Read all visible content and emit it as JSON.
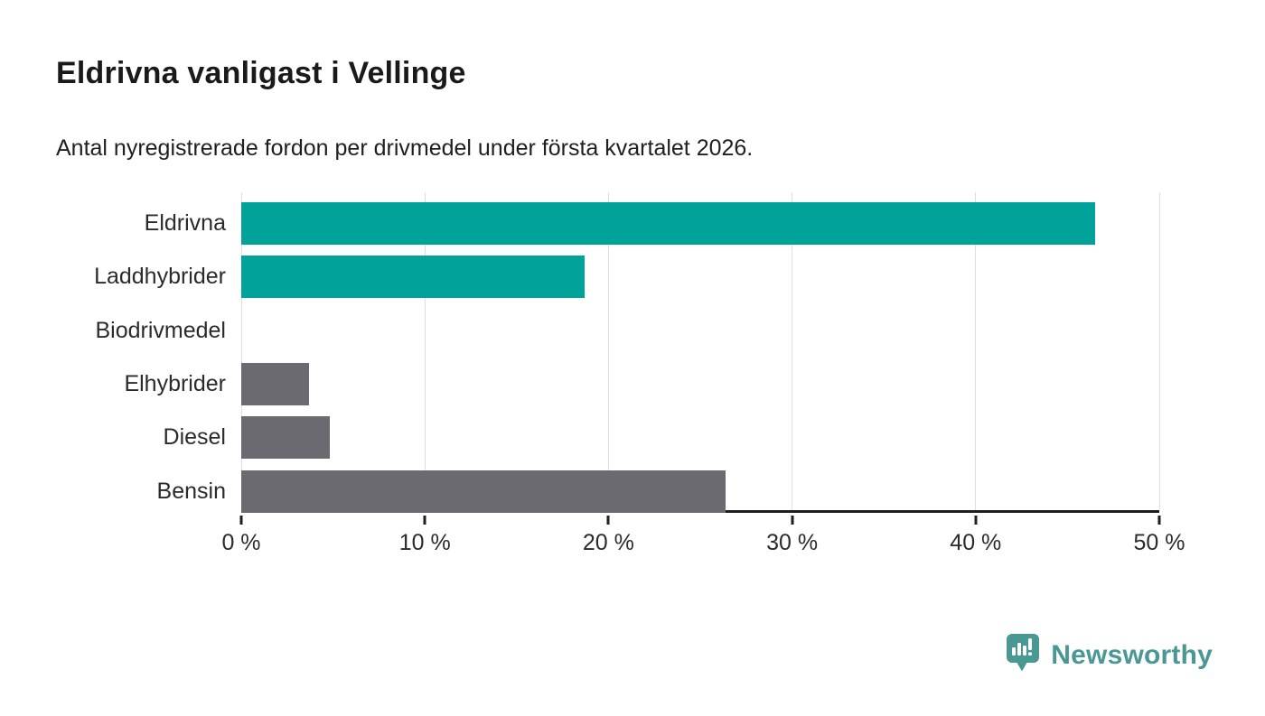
{
  "title": "Eldrivna vanligast i Vellinge",
  "subtitle": "Antal nyregistrerade fordon per drivmedel under första kvartalet 2026.",
  "chart_data": {
    "type": "bar",
    "orientation": "horizontal",
    "title": "Eldrivna vanligast i Vellinge",
    "subtitle": "Antal nyregistrerade fordon per drivmedel under första kvartalet 2026.",
    "categories": [
      "Eldrivna",
      "Laddhybrider",
      "Biodrivmedel",
      "Elhybrider",
      "Diesel",
      "Bensin"
    ],
    "values": [
      46.5,
      18.7,
      0,
      3.7,
      4.8,
      26.4
    ],
    "unit": "%",
    "bar_colors": [
      "#00a29a",
      "#00a29a",
      "#6b6a70",
      "#6b6a70",
      "#6b6a70",
      "#6b6a70"
    ],
    "xlabel": "",
    "ylabel": "",
    "xlim": [
      0,
      50
    ],
    "x_tick_values": [
      0,
      10,
      20,
      30,
      40,
      50
    ],
    "x_tick_labels": [
      "0 %",
      "10 %",
      "20 %",
      "30 %",
      "40 %",
      "50 %"
    ],
    "grid": true,
    "legend": false
  },
  "footer": {
    "brand": "Newsworthy",
    "logo_icon": "newsworthy-speech-bubble-bar-chart-icon",
    "brand_color": "#4a9894"
  },
  "colors": {
    "accent_teal": "#00a29a",
    "neutral_gray": "#6b6a70",
    "gridline": "#dedede",
    "axis": "#1f1f1f",
    "text": "#1d1d1d",
    "background": "#ffffff"
  }
}
